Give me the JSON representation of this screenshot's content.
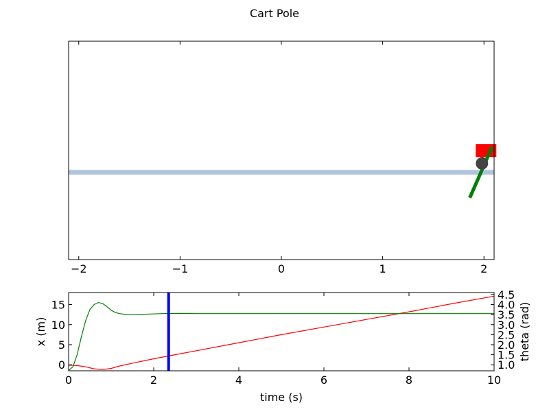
{
  "chart_data": [
    {
      "type": "diagram",
      "title": "Cart Pole",
      "xlim": [
        -2.1,
        2.1
      ],
      "x_ticks": [
        -2,
        -1,
        0,
        1,
        2
      ],
      "x_tick_labels": [
        "−2",
        "−1",
        "0",
        "1",
        "2"
      ],
      "track": {
        "color": "#b0c4de"
      },
      "cart": {
        "x": 1.98,
        "color": "#ff0000"
      },
      "pivot": {
        "x": 1.98,
        "color": "#444444"
      },
      "pole": {
        "x_top": 2.08,
        "x_bottom": 1.86,
        "color": "#008000"
      }
    },
    {
      "type": "line",
      "xlabel": "time (s)",
      "ylabel": "x (m)",
      "y2label": "theta (rad)",
      "xlim": [
        0,
        10
      ],
      "ylim": [
        -1.5,
        18
      ],
      "y2lim": [
        0.7,
        4.6
      ],
      "x_ticks": [
        0,
        2,
        4,
        6,
        8,
        10
      ],
      "y_ticks": [
        0,
        5,
        10,
        15
      ],
      "y2_ticks": [
        1.0,
        1.5,
        2.0,
        2.5,
        3.0,
        3.5,
        4.0,
        4.5
      ],
      "y2_tick_labels": [
        "1.0",
        "1.5",
        "2.0",
        "2.5",
        "3.0",
        "3.5",
        "4.0",
        "4.5"
      ],
      "cursor_time": 2.35,
      "cursor_color": "#0000ff",
      "series": [
        {
          "axis": "left",
          "color": "#ff0000",
          "x": [
            0,
            0.2,
            0.4,
            0.6,
            0.8,
            1.0,
            1.2,
            1.5,
            2.0,
            2.5,
            3,
            4,
            5,
            6,
            7,
            8,
            9,
            10
          ],
          "y": [
            -0.1,
            -0.2,
            -0.5,
            -1.0,
            -1.2,
            -0.9,
            -0.3,
            0.4,
            1.5,
            2.5,
            3.5,
            5.5,
            7.5,
            9.4,
            11.3,
            13.2,
            15.2,
            17.1
          ]
        },
        {
          "axis": "right",
          "color": "#008000",
          "x": [
            0,
            0.1,
            0.2,
            0.3,
            0.4,
            0.5,
            0.6,
            0.7,
            0.8,
            0.9,
            1.0,
            1.1,
            1.2,
            1.3,
            1.5,
            1.8,
            2.2,
            2.6,
            3,
            4,
            6,
            8,
            10
          ],
          "y": [
            0.72,
            0.9,
            1.5,
            2.4,
            3.2,
            3.75,
            4.0,
            4.1,
            4.05,
            3.9,
            3.72,
            3.6,
            3.55,
            3.52,
            3.5,
            3.52,
            3.55,
            3.56,
            3.55,
            3.55,
            3.55,
            3.55,
            3.55
          ]
        }
      ]
    }
  ]
}
